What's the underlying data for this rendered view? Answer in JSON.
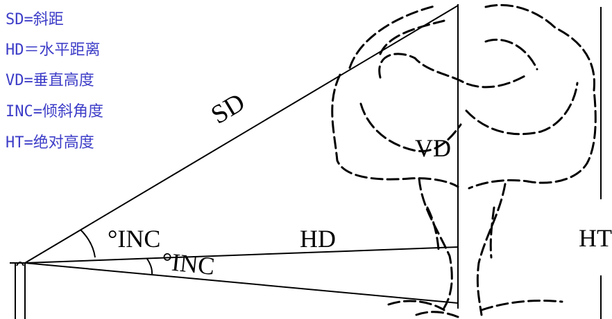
{
  "legend": {
    "color": "#3d3dc8",
    "items": [
      "SD=斜距",
      "HD＝水平距离",
      "VD=垂直高度",
      "INC=倾斜角度",
      "HT=绝对高度"
    ]
  },
  "labels": {
    "sd": "SD",
    "hd": "HD",
    "vd": "VD",
    "ht": "HT",
    "inc_upper": "°INC",
    "inc_lower": "°INC"
  }
}
